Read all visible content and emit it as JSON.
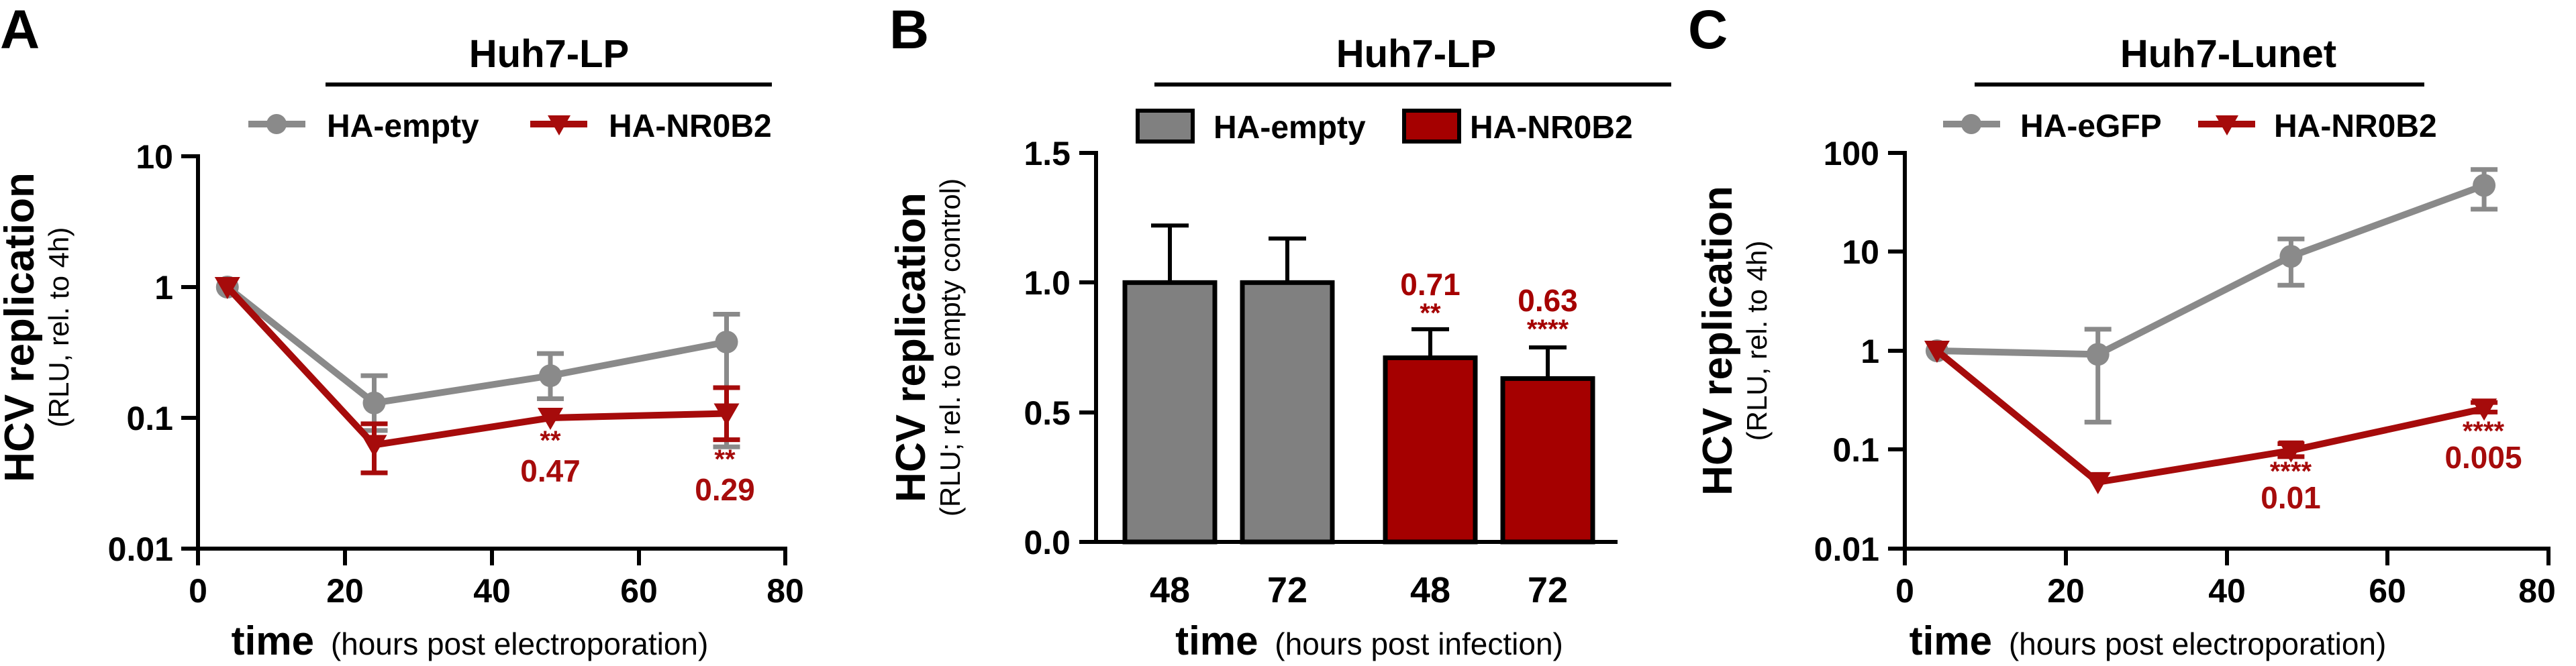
{
  "colors": {
    "gray": "#8a8a8a",
    "red": "#a60b0b",
    "black": "#000000",
    "bar_gray": "#808080",
    "bar_red": "#a50000"
  },
  "chart_data": [
    {
      "panel": "A",
      "type": "line",
      "title": "Huh7-LP",
      "ylabel": "HCV replication",
      "ysublabel": "(RLU, rel. to 4h)",
      "xlabel": "time",
      "xsublabel": "(hours post electroporation)",
      "yscale": "log",
      "ylim": [
        0.01,
        10
      ],
      "xlim": [
        0,
        80
      ],
      "yticks": [
        0.01,
        0.1,
        1,
        10
      ],
      "ytick_labels": [
        "0.01",
        "0.1",
        "1",
        "10"
      ],
      "xticks": [
        0,
        20,
        40,
        60,
        80
      ],
      "xtick_labels": [
        "0",
        "20",
        "40",
        "60",
        "80"
      ],
      "legend_position": "top",
      "series": [
        {
          "name": "HA-empty",
          "color": "#8a8a8a",
          "marker": "circle",
          "x": [
            4,
            24,
            48,
            72
          ],
          "y": [
            1.0,
            0.13,
            0.21,
            0.38
          ],
          "err_low": [
            1.0,
            0.08,
            0.14,
            0.06
          ],
          "err_high": [
            1.0,
            0.21,
            0.31,
            0.62
          ]
        },
        {
          "name": "HA-NR0B2",
          "color": "#a60b0b",
          "marker": "triangle-down",
          "x": [
            4,
            24,
            48,
            72
          ],
          "y": [
            1.0,
            0.062,
            0.1,
            0.108
          ],
          "err_low": [
            1.0,
            0.038,
            0.1,
            0.068
          ],
          "err_high": [
            1.0,
            0.09,
            0.1,
            0.17
          ]
        }
      ],
      "annotations": [
        {
          "x": 48,
          "sig": "**",
          "value": "0.47"
        },
        {
          "x": 72,
          "sig": "**",
          "value": "0.29"
        }
      ]
    },
    {
      "panel": "B",
      "type": "bar",
      "title": "Huh7-LP",
      "ylabel": "HCV replication",
      "ysublabel": "(RLU; rel. to empty control)",
      "xlabel": "time",
      "xsublabel": "(hours post infection)",
      "ylim": [
        0,
        1.5
      ],
      "yticks": [
        0,
        0.5,
        1.0,
        1.5
      ],
      "ytick_labels": [
        "0.0",
        "0.5",
        "1.0",
        "1.5"
      ],
      "legend_position": "top",
      "categories": [
        "48",
        "72",
        "48",
        "72"
      ],
      "values": [
        1.0,
        1.0,
        0.71,
        0.63
      ],
      "errors": [
        0.22,
        0.17,
        0.11,
        0.12
      ],
      "series_index": [
        0,
        0,
        1,
        1
      ],
      "series": [
        {
          "name": "HA-empty",
          "color": "#808080"
        },
        {
          "name": "HA-NR0B2",
          "color": "#a50000"
        }
      ],
      "annotations": [
        {
          "bar": 2,
          "value": "0.71",
          "sig": "**"
        },
        {
          "bar": 3,
          "value": "0.63",
          "sig": "****"
        }
      ]
    },
    {
      "panel": "C",
      "type": "line",
      "title": "Huh7-Lunet",
      "ylabel": "HCV replication",
      "ysublabel": "(RLU, rel. to 4h)",
      "xlabel": "time",
      "xsublabel": "(hours post electroporation)",
      "yscale": "log",
      "ylim": [
        0.01,
        100
      ],
      "xlim": [
        0,
        80
      ],
      "yticks": [
        0.01,
        0.1,
        1,
        10,
        100
      ],
      "ytick_labels": [
        "0.01",
        "0.1",
        "1",
        "10",
        "100"
      ],
      "xticks": [
        0,
        20,
        40,
        60,
        80
      ],
      "xtick_labels": [
        "0",
        "20",
        "40",
        "60",
        "80"
      ],
      "legend_position": "top",
      "series": [
        {
          "name": "HA-eGFP",
          "color": "#8a8a8a",
          "marker": "circle",
          "x": [
            4,
            24,
            48,
            72
          ],
          "y": [
            1.0,
            0.92,
            9.0,
            47
          ],
          "err_low": [
            1.0,
            0.19,
            4.6,
            27
          ],
          "err_high": [
            1.0,
            1.65,
            13.5,
            68
          ]
        },
        {
          "name": "HA-NR0B2",
          "color": "#a60b0b",
          "marker": "triangle-down",
          "x": [
            4,
            24,
            48,
            72
          ],
          "y": [
            1.0,
            0.047,
            0.098,
            0.26
          ],
          "err_low": [
            1.0,
            0.047,
            0.085,
            0.24
          ],
          "err_high": [
            1.0,
            0.047,
            0.115,
            0.3
          ]
        }
      ],
      "annotations": [
        {
          "x": 48,
          "sig": "****",
          "value": "0.01"
        },
        {
          "x": 72,
          "sig": "****",
          "value": "0.005"
        }
      ]
    }
  ]
}
